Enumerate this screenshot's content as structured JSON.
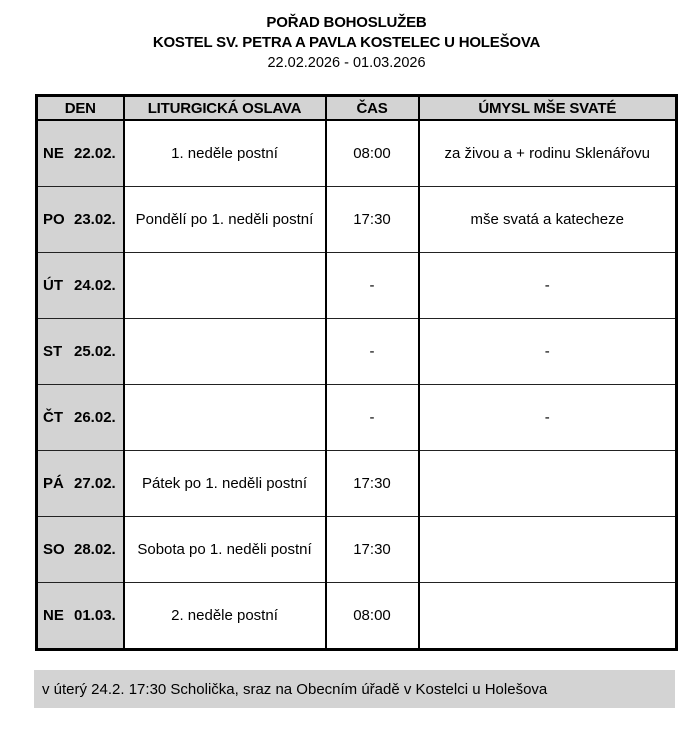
{
  "header": {
    "title": "POŘAD BOHOSLUŽEB",
    "subtitle": "KOSTEL SV. PETRA A PAVLA KOSTELEC U HOLEŠOVA",
    "date_range": "22.02.2026 - 01.03.2026"
  },
  "table": {
    "columns": [
      "DEN",
      "LITURGICKÁ OSLAVA",
      "ČAS",
      "ÚMYSL MŠE SVATÉ"
    ],
    "rows": [
      {
        "day": "NE",
        "date": "22.02.",
        "liturgy": "1. neděle postní",
        "time": "08:00",
        "intention": "za živou a + rodinu Sklenářovu"
      },
      {
        "day": "PO",
        "date": "23.02.",
        "liturgy": "Pondělí po 1. neděli postní",
        "time": "17:30",
        "intention": "mše svatá a katecheze"
      },
      {
        "day": "ÚT",
        "date": "24.02.",
        "liturgy": "",
        "time": "-",
        "intention": "-"
      },
      {
        "day": "ST",
        "date": "25.02.",
        "liturgy": "",
        "time": "-",
        "intention": "-"
      },
      {
        "day": "ČT",
        "date": "26.02.",
        "liturgy": "",
        "time": "-",
        "intention": "-"
      },
      {
        "day": "PÁ",
        "date": "27.02.",
        "liturgy": "Pátek po 1. neděli postní",
        "time": "17:30",
        "intention": ""
      },
      {
        "day": "SO",
        "date": "28.02.",
        "liturgy": "Sobota po 1. neděli postní",
        "time": "17:30",
        "intention": ""
      },
      {
        "day": "NE",
        "date": "01.03.",
        "liturgy": "2. neděle postní",
        "time": "08:00",
        "intention": ""
      }
    ]
  },
  "footer": {
    "note": "v úterý 24.2. 17:30 Scholička, sraz na Obecním úřadě v Kostelci u Holešova"
  },
  "colors": {
    "shaded_cell": "#d3d3d3",
    "border": "#000000",
    "note_background": "#d3d3d3",
    "text": "#000000"
  }
}
